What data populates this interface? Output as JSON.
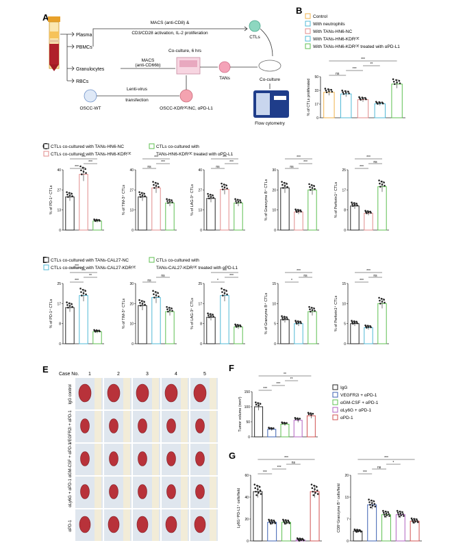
{
  "colors": {
    "igg": "#222222",
    "black": "#222222",
    "neutro": "#4fb8d6",
    "nc": "#e08a8a",
    "kdr": "#4fb8d6",
    "kdrl1": "#5cbf4f",
    "orange": "#f0b24a",
    "vegf": "#3a5fb0",
    "gmcsf": "#5cbf4f",
    "ly6g": "#b05fc0",
    "apd1": "#d05050"
  },
  "panelA": {
    "label": "A",
    "plasma": "Plasma",
    "pbmcs": "PBMCs",
    "granulocytes": "Granulocytes",
    "rbcs": "RBCs",
    "macs_cd8": "MACS (anti-CD8) &",
    "cd3cd28": "CD3/CD28 activation, IL-2 proliferation",
    "ctls": "CTLs",
    "coculture6h": "Co-culture, 6 hrs",
    "macs_cd66b_1": "MACS",
    "macs_cd66b_2": "(anti-CD66b)",
    "tans": "TANs",
    "coculture": "Co-culture",
    "lenti1": "Lenti-virus",
    "lenti2": "transfection",
    "oscc_wt": "OSCC-WT",
    "oscc_kdr": "OSCC-KDRᴼᴱ/NC, αPD-L1",
    "flow": "Flow cytometry"
  },
  "panelB": {
    "label": "B",
    "legend": [
      "Control",
      "With neutrophils",
      "With TANs-HN6-NC",
      "With TANs-HN6-KDRᴼᴱ",
      "With TANs-HN6-KDRᴼᴱ treated with αPD-L1"
    ],
    "ylabel": "% of CTLs proliferated",
    "stats": [
      "ns",
      "***",
      "**",
      "***"
    ]
  },
  "panelC": {
    "label": "C",
    "legend": [
      "CTLs co-cultured with TANs-HN6-NC",
      "CTLs co-cultured with TANs-HN6-KDRᴼᴱ",
      "CTLs co-cultured with",
      "TANs-HN6-KDRᴼᴱ treated with αPD-L1"
    ],
    "ylabels": [
      "% of PD-1⁺ CTLs",
      "% of TIM-3⁺ CTLs",
      "% of LAG-3⁺ CTLs",
      "% of Granzyme B⁺ CTLs",
      "% of Perforin1⁺ CTLs"
    ],
    "stats": [
      [
        "***",
        "***",
        "***"
      ],
      [
        "ns",
        "***",
        "***"
      ],
      [
        "ns",
        "***",
        "***"
      ],
      [
        "ns",
        "***",
        "***"
      ],
      [
        "***",
        "ns",
        "***"
      ]
    ]
  },
  "panelD": {
    "label": "D",
    "legend": [
      "CTLs co-cultured with TANs-CAL27-NC",
      "CTLs co-cultured with TANs-CAL27-KDRᴼᴱ",
      "CTLs co-cultured with",
      "TANs-CAL27-KDRᴼᴱ treated with αPD-L1"
    ],
    "ylabels": [
      "% of PD-1⁺ CTLs",
      "% of TIM-3⁺ CTLs",
      "% of LAG-3⁺ CTLs",
      "% of Granzyme B⁺ CTLs",
      "% of Perforin1⁺ CTLs"
    ],
    "stats": [
      [
        "***",
        "**",
        "***",
        "***"
      ],
      [
        "ns",
        "ns"
      ],
      [
        "*",
        "***",
        "***"
      ],
      [
        "*",
        "ns",
        "***"
      ],
      [
        "***",
        "ns",
        "***"
      ]
    ]
  },
  "panelE": {
    "label": "E",
    "case_label": "Case No.",
    "cases": [
      "1",
      "2",
      "3",
      "4",
      "5"
    ],
    "rows": [
      "IgG control",
      "VEGFR2i + αPD-1",
      "αGM-CSF + αPD-1",
      "αLy6G + αPD-1",
      "αPD-1"
    ]
  },
  "panelF": {
    "label": "F",
    "ylabel": "Tumor volume (mm³)",
    "legend": [
      "IgG",
      "VEGFR2i + αPD-1",
      "αGM-CSF + αPD-1",
      "αLy6G + αPD-1",
      "αPD-1"
    ],
    "stats": [
      "***",
      "***",
      "**",
      "**",
      "*",
      "ns",
      "*"
    ]
  },
  "panelG": {
    "label": "G",
    "ylabel1": "Ly6G⁺PD-L1⁺ cells/field",
    "ylabel2": "CD8⁺Granzyme B⁺ cells/field",
    "stats1": [
      "***",
      "***",
      "ns",
      "***"
    ],
    "stats2": [
      "***",
      "ns",
      "*",
      "***"
    ]
  },
  "chart_data": [
    {
      "type": "bar",
      "panel": "B",
      "categories": [
        "Control",
        "With neutrophils",
        "With TANs-HN6-NC",
        "With TANs-HN6-KDRᴼᴱ",
        "With TANs-HN6-KDRᴼᴱ treated with αPD-L1"
      ],
      "values": [
        31,
        29,
        22,
        17,
        41
      ],
      "ylim": [
        0,
        50
      ],
      "ylabel": "% of CTLs proliferated"
    },
    {
      "type": "bar",
      "panel": "C",
      "ylabel": "% of PD-1⁺ CTLs",
      "values": [
        22,
        37,
        6
      ],
      "ylim": [
        0,
        40
      ]
    },
    {
      "type": "bar",
      "panel": "C",
      "ylabel": "% of TIM-3⁺ CTLs",
      "values": [
        22,
        28,
        18
      ],
      "ylim": [
        0,
        40
      ]
    },
    {
      "type": "bar",
      "panel": "C",
      "ylabel": "% of LAG-3⁺ CTLs",
      "values": [
        21,
        27,
        18
      ],
      "ylim": [
        0,
        40
      ]
    },
    {
      "type": "bar",
      "panel": "C",
      "ylabel": "% of Granzyme B⁺ CTLs",
      "values": [
        21,
        9,
        20
      ],
      "ylim": [
        0,
        30
      ]
    },
    {
      "type": "bar",
      "panel": "C",
      "ylabel": "% of Perforin1⁺ CTLs",
      "values": [
        10,
        7,
        18
      ],
      "ylim": [
        0,
        25
      ]
    },
    {
      "type": "bar",
      "panel": "D",
      "ylabel": "% of PD-1⁺ CTLs",
      "values": [
        15,
        20,
        5
      ],
      "ylim": [
        0,
        25
      ]
    },
    {
      "type": "bar",
      "panel": "D",
      "ylabel": "% of TIM-3⁺ CTLs",
      "values": [
        19,
        23,
        16
      ],
      "ylim": [
        0,
        30
      ]
    },
    {
      "type": "bar",
      "panel": "D",
      "ylabel": "% of LAG-3⁺ CTLs",
      "values": [
        11,
        20,
        7
      ],
      "ylim": [
        0,
        25
      ]
    },
    {
      "type": "bar",
      "panel": "D",
      "ylabel": "% of Granzyme B⁺ CTLs",
      "values": [
        6,
        5,
        8
      ],
      "ylim": [
        0,
        15
      ]
    },
    {
      "type": "bar",
      "panel": "D",
      "ylabel": "% of Perforin1⁺ CTLs",
      "values": [
        5,
        4,
        10
      ],
      "ylim": [
        0,
        15
      ]
    },
    {
      "type": "bar",
      "panel": "F",
      "ylabel": "Tumor volume (mm³)",
      "categories": [
        "IgG",
        "VEGFR2i + αPD-1",
        "αGM-CSF + αPD-1",
        "αLy6G + αPD-1",
        "αPD-1"
      ],
      "values": [
        100,
        25,
        42,
        55,
        70
      ],
      "ylim": [
        0,
        150
      ]
    },
    {
      "type": "bar",
      "panel": "G",
      "ylabel": "Ly6G⁺PD-L1⁺ cells/field",
      "categories": [
        "IgG",
        "VEGFR2i + αPD-1",
        "αGM-CSF + αPD-1",
        "αLy6G + αPD-1",
        "αPD-1"
      ],
      "values": [
        45,
        17,
        17,
        1,
        45
      ],
      "ylim": [
        0,
        60
      ]
    },
    {
      "type": "bar",
      "panel": "G",
      "ylabel": "CD8⁺Granzyme B⁺ cells/field",
      "categories": [
        "IgG",
        "VEGFR2i + αPD-1",
        "αGM-CSF + αPD-1",
        "αLy6G + αPD-1",
        "αPD-1"
      ],
      "values": [
        3,
        11,
        8,
        8,
        6
      ],
      "ylim": [
        0,
        20
      ]
    }
  ]
}
